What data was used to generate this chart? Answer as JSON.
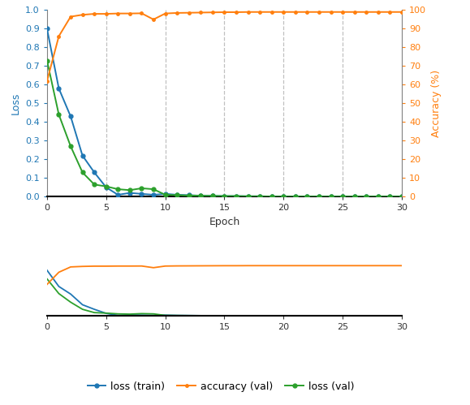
{
  "epochs": [
    0,
    1,
    2,
    3,
    4,
    5,
    6,
    7,
    8,
    9,
    10,
    11,
    12,
    13,
    14,
    15,
    16,
    17,
    18,
    19,
    20,
    21,
    22,
    23,
    24,
    25,
    26,
    27,
    28,
    29,
    30
  ],
  "loss_train": [
    0.9,
    0.58,
    0.43,
    0.22,
    0.13,
    0.05,
    0.01,
    0.02,
    0.015,
    0.01,
    0.015,
    0.01,
    0.008,
    0.005,
    0.004,
    0.003,
    0.003,
    0.002,
    0.002,
    0.001,
    0.001,
    0.001,
    0.001,
    0.001,
    0.001,
    0.001,
    0.001,
    0.001,
    0.001,
    0.001,
    0.001
  ],
  "loss_val": [
    0.73,
    0.44,
    0.27,
    0.13,
    0.065,
    0.055,
    0.04,
    0.035,
    0.045,
    0.04,
    0.01,
    0.008,
    0.006,
    0.005,
    0.004,
    0.003,
    0.003,
    0.002,
    0.002,
    0.001,
    0.001,
    0.001,
    0.001,
    0.001,
    0.001,
    0.001,
    0.001,
    0.001,
    0.001,
    0.001,
    0.001
  ],
  "acc_val": [
    62,
    86,
    96.5,
    97.5,
    98.0,
    98.0,
    98.2,
    98.2,
    98.3,
    95.0,
    98.2,
    98.5,
    98.6,
    98.7,
    98.8,
    98.9,
    98.9,
    99.0,
    99.0,
    99.0,
    99.0,
    99.0,
    99.0,
    99.0,
    99.0,
    99.0,
    99.0,
    99.0,
    99.0,
    99.0,
    99.0
  ],
  "color_train": "#1f77b4",
  "color_val_acc": "#ff7f0e",
  "color_val_loss": "#2ca02c",
  "color_left_ticks": "#1f77b4",
  "color_right_ticks": "#ff7f0e",
  "color_axis": "#808080",
  "xlabel": "Epoch",
  "ylabel_left": "Loss",
  "ylabel_right": "Accuracy (%)",
  "xlim": [
    0,
    30
  ],
  "ylim_loss": [
    0,
    1.0
  ],
  "ylim_acc": [
    0,
    100
  ],
  "grid_epochs": [
    5,
    10,
    15,
    20,
    25
  ],
  "legend_labels": [
    "loss (train)",
    "accuracy (val)",
    "loss (val)"
  ],
  "fig_width": 5.79,
  "fig_height": 4.99,
  "dpi": 100
}
